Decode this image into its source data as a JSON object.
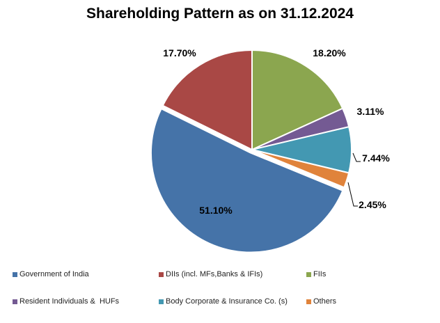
{
  "chart_data": {
    "type": "pie",
    "title": "Shareholding Pattern as on 31.12.2024",
    "legend_position": "bottom",
    "slices": [
      {
        "label": "FIIs",
        "value": 18.2,
        "data_label": "18.20%",
        "color": "#8BA64F"
      },
      {
        "label": "Resident Individuals &  HUFs",
        "value": 3.11,
        "data_label": "3.11%",
        "color": "#745A93"
      },
      {
        "label": "Body Corporate & Insurance Co. (s)",
        "value": 7.44,
        "data_label": "7.44%",
        "color": "#4398B2"
      },
      {
        "label": "Others",
        "value": 2.45,
        "data_label": "2.45%",
        "color": "#E0833B"
      },
      {
        "label": "Government of India",
        "value": 51.1,
        "data_label": "51.10%",
        "color": "#4573A8"
      },
      {
        "label": "DIIs (incl. MFs,Banks & IFIs)",
        "value": 17.7,
        "data_label": "17.70%",
        "color": "#A94845"
      }
    ],
    "legend_order": [
      "Government of India",
      "DIIs (incl. MFs,Banks & IFIs)",
      "FIIs",
      "Resident Individuals &  HUFs",
      "Body Corporate & Insurance Co. (s)",
      "Others"
    ]
  }
}
